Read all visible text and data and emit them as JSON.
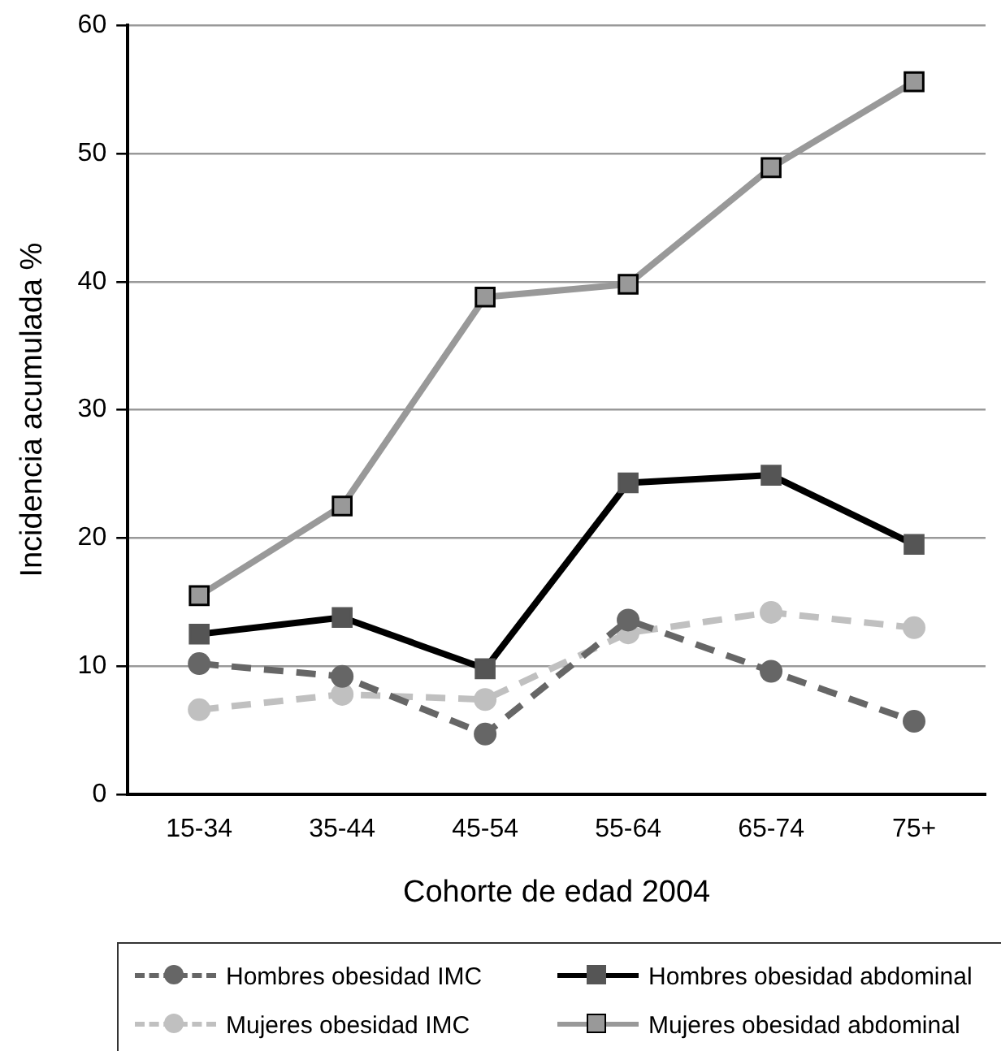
{
  "chart_data": {
    "type": "line",
    "xlabel": "Cohorte de edad 2004",
    "ylabel": "Incidencia acumulada %",
    "categories": [
      "15-34",
      "35-44",
      "45-54",
      "55-64",
      "65-74",
      "75+"
    ],
    "ylim": [
      0,
      60
    ],
    "yticks": [
      0,
      10,
      20,
      30,
      40,
      50,
      60
    ],
    "grid": "y",
    "legend": "bottom",
    "series": [
      {
        "name": "Hombres obesidad IMC",
        "color": "#666666",
        "marker": "circle",
        "line_style": "dashed",
        "values": [
          10.2,
          9.2,
          4.7,
          13.6,
          9.6,
          5.7
        ]
      },
      {
        "name": "Hombres obesidad abdominal",
        "color": "#000000",
        "marker": "square",
        "line_style": "solid",
        "values": [
          12.5,
          13.8,
          9.8,
          24.3,
          24.9,
          19.5
        ]
      },
      {
        "name": "Mujeres obesidad IMC",
        "color": "#c0c0c0",
        "marker": "circle",
        "line_style": "dashed",
        "values": [
          6.6,
          7.8,
          7.4,
          12.6,
          14.2,
          13.0
        ]
      },
      {
        "name": "Mujeres obesidad abdominal",
        "color": "#999999",
        "marker": "square",
        "line_style": "solid",
        "values": [
          15.5,
          22.5,
          38.8,
          39.8,
          48.9,
          55.6
        ]
      }
    ]
  }
}
